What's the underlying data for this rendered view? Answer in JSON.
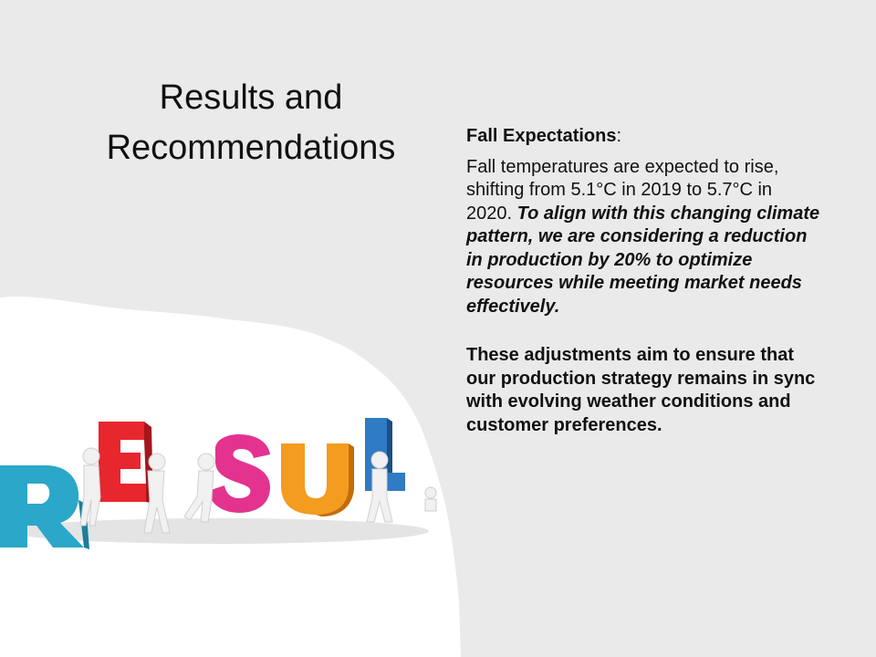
{
  "slide": {
    "title": "Results and Recommendations",
    "section_heading": "Fall Expectations",
    "section_heading_suffix": ":",
    "para1_plain": "Fall temperatures are expected to rise, shifting from 5.1°C in 2019 to 5.7°C in 2020. ",
    "para1_emphasis": "To align with this changing climate pattern, we are considering a reduction in production by 20% to optimize resources while meeting market needs effectively.",
    "para2": "These adjustments aim to ensure that our production strategy remains in sync with evolving weather conditions and customer preferences."
  },
  "image": {
    "letters": [
      "R",
      "E",
      "S",
      "U",
      "L"
    ],
    "letter_colors": [
      "#2aa7c9",
      "#e8262e",
      "#e3338f",
      "#f39c1f",
      "#2f7bc4"
    ],
    "background": "#ebeaea",
    "paper": "#ffffff"
  }
}
